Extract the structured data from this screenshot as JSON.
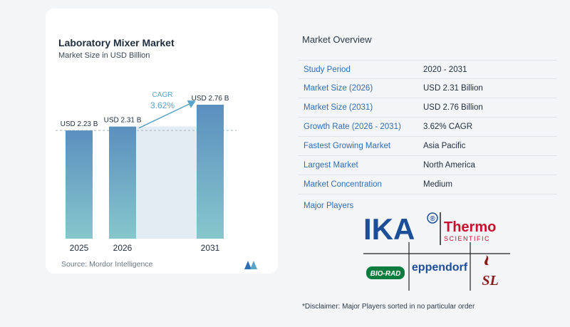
{
  "chart_data": {
    "type": "bar",
    "title": "Laboratory Mixer Market",
    "subtitle": "Market Size in USD Billion",
    "categories": [
      "2025",
      "2026",
      "2031"
    ],
    "values": [
      2.23,
      2.31,
      2.76
    ],
    "data_labels": [
      "USD 2.23 B",
      "USD 2.31 B",
      "USD 2.76 B"
    ],
    "cagr_label": "CAGR",
    "cagr_value": "3.62%",
    "colors": {
      "bar_top": "#5b8fbf",
      "bar_bottom": "#86c7cc",
      "band": "#e3ebf3",
      "arrow": "#5aa3c9"
    }
  },
  "source": "Source:  Mordor Intelligence",
  "overview": {
    "title": "Market Overview",
    "rows": [
      {
        "label": "Study Period",
        "value": "2020 - 2031"
      },
      {
        "label": "Market Size (2026)",
        "value": "USD 2.31 Billion"
      },
      {
        "label": "Market Size (2031)",
        "value": "USD 2.76 Billion"
      },
      {
        "label": "Growth Rate (2026 - 2031)",
        "value": "3.62% CAGR"
      },
      {
        "label": "Fastest Growing Market",
        "value": "Asia Pacific"
      },
      {
        "label": "Largest Market",
        "value": "North America"
      },
      {
        "label": "Market Concentration",
        "value": "Medium"
      }
    ],
    "players_label": "Major Players"
  },
  "players": {
    "ika": "IKA",
    "ika_mark": "®",
    "thermo": "Thermo",
    "scientific": "SCIENTIFIC",
    "biorad": "BIO-RAD",
    "eppendorf": "eppendorf",
    "sl": "SL"
  },
  "disclaimer": "*Disclaimer: Major Players sorted in no particular order"
}
